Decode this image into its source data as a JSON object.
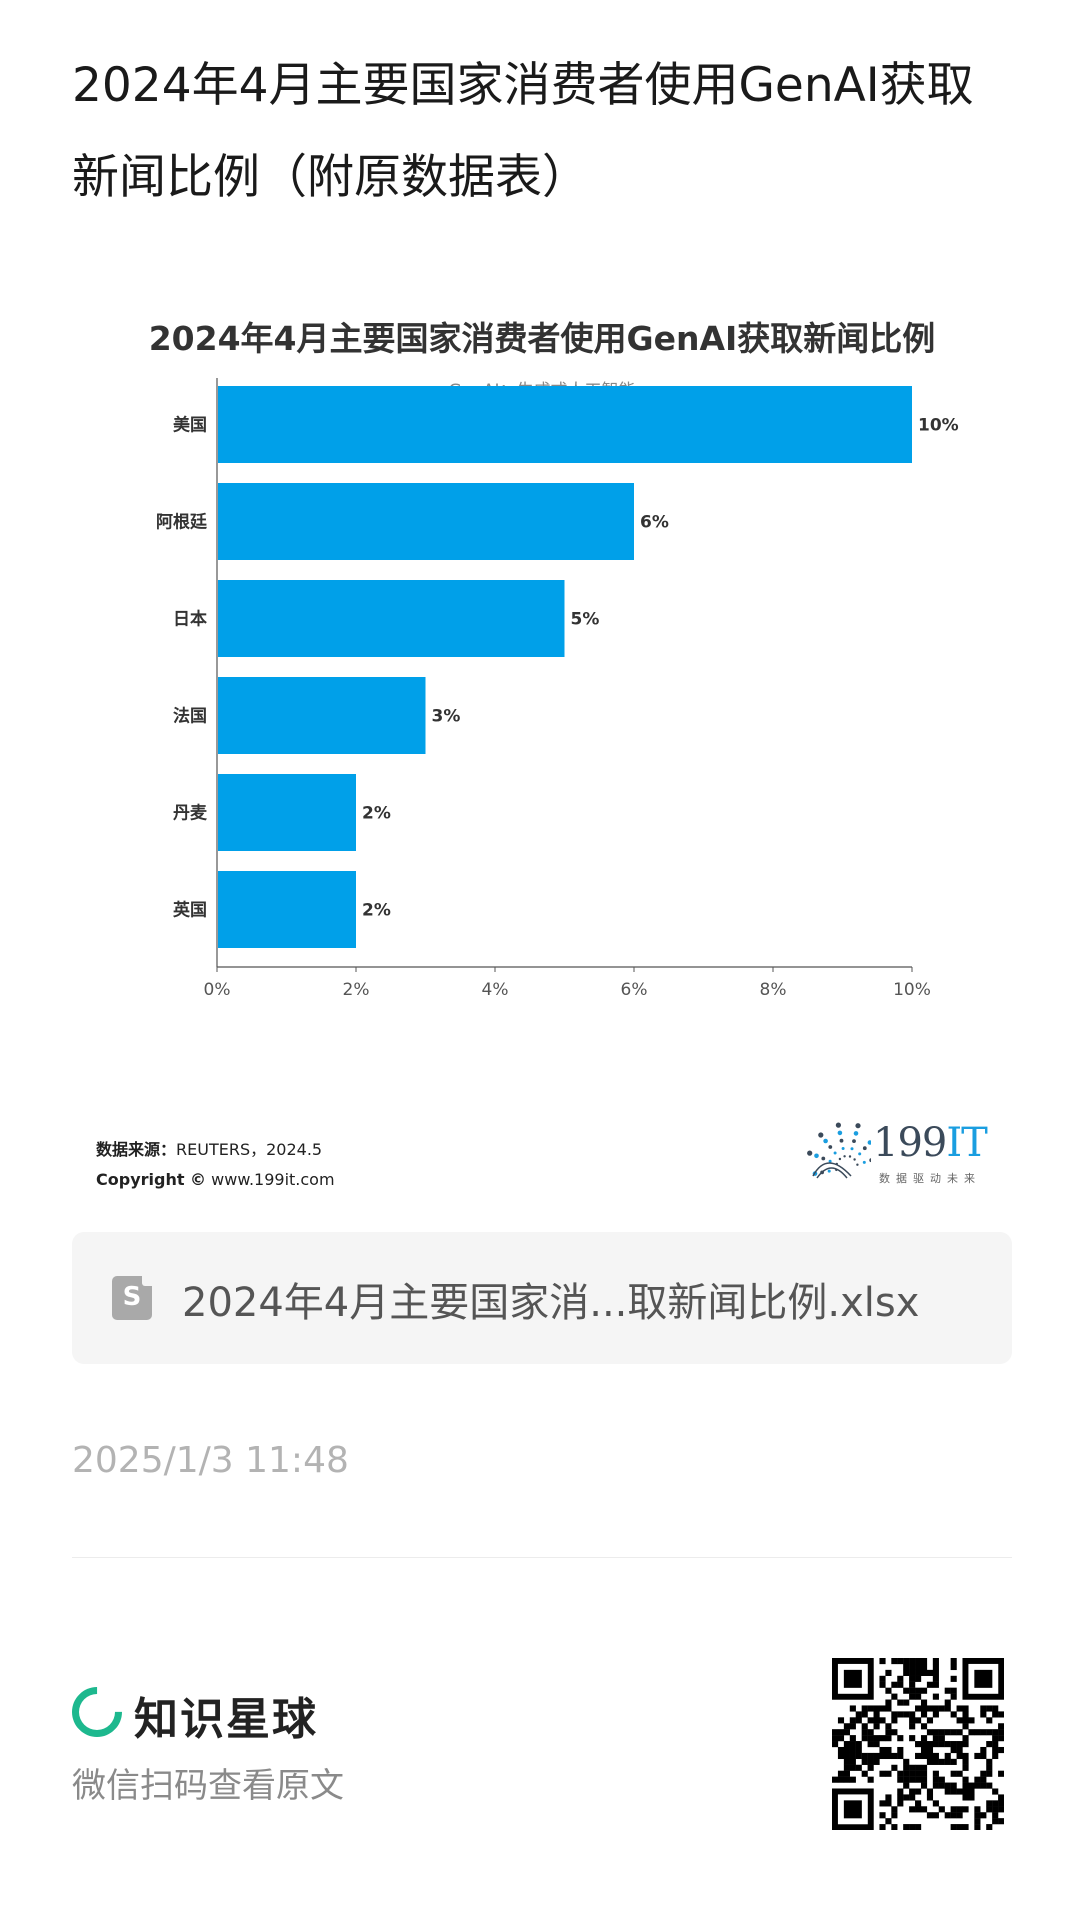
{
  "post": {
    "title": "2024年4月主要国家消费者使用GenAI获取新闻比例（附原数据表）",
    "time": "2025/1/3 11:48"
  },
  "chart_data": {
    "type": "bar",
    "orientation": "horizontal",
    "title": "2024年4月主要国家消费者使用GenAI获取新闻比例",
    "subtitle": "GenAI：生成式人工智能",
    "categories": [
      "美国",
      "阿根廷",
      "日本",
      "法国",
      "丹麦",
      "英国"
    ],
    "values": [
      10,
      6,
      5,
      3,
      2,
      2
    ],
    "value_labels": [
      "10%",
      "6%",
      "5%",
      "3%",
      "2%",
      "2%"
    ],
    "xlim": [
      0,
      10
    ],
    "x_ticks": [
      "0%",
      "2%",
      "4%",
      "6%",
      "8%",
      "10%"
    ],
    "x_tick_values": [
      0,
      2,
      4,
      6,
      8,
      10
    ],
    "bar_color": "#00a0e9",
    "grid": false,
    "legend": "none"
  },
  "source": {
    "label": "数据来源：",
    "value": "REUTERS，2024.5",
    "copyright_label": "Copyright ©",
    "copyright_value": "www.199it.com"
  },
  "brand": {
    "name_num": "199",
    "name_it": "IT",
    "slogan": "数据驱动未来",
    "dot_color": "#1a9ee0"
  },
  "attachment": {
    "icon": "spreadsheet-file-icon",
    "icon_letter": "S",
    "name": "2024年4月主要国家消...取新闻比例.xlsx"
  },
  "footer": {
    "brand": "知识星球",
    "brand_icon": "zsxq-logo-icon",
    "accent": "#1db88e",
    "tip": "微信扫码查看原文",
    "qr_icon": "qr-code-icon"
  }
}
